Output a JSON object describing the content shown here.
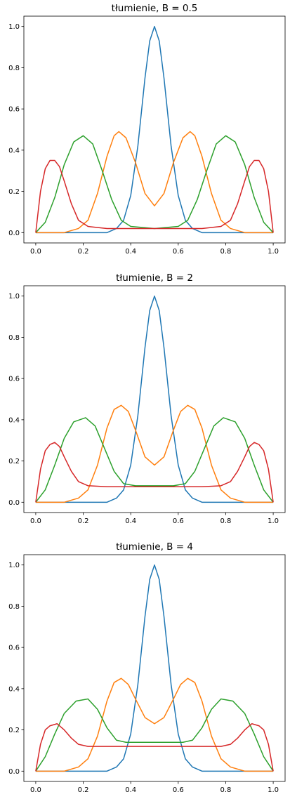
{
  "chart_data": [
    {
      "type": "line",
      "title": "tłumienie, B = 0.5",
      "xlabel": "",
      "ylabel": "",
      "xlim": [
        -0.05,
        1.05
      ],
      "ylim": [
        -0.05,
        1.05
      ],
      "x_ticks": [
        "0.0",
        "0.2",
        "0.4",
        "0.6",
        "0.8",
        "1.0"
      ],
      "y_ticks": [
        "0.0",
        "0.2",
        "0.4",
        "0.6",
        "0.8",
        "1.0"
      ],
      "series": [
        {
          "color": "#1f77b4",
          "x": [
            0.0,
            0.3,
            0.34,
            0.37,
            0.4,
            0.43,
            0.46,
            0.48,
            0.5,
            0.52,
            0.54,
            0.57,
            0.6,
            0.63,
            0.66,
            0.7,
            1.0
          ],
          "y": [
            0.0,
            0.0,
            0.02,
            0.06,
            0.18,
            0.42,
            0.75,
            0.93,
            1.0,
            0.93,
            0.75,
            0.42,
            0.18,
            0.06,
            0.02,
            0.0,
            0.0
          ]
        },
        {
          "color": "#ff7f0e",
          "x": [
            0.0,
            0.12,
            0.18,
            0.22,
            0.26,
            0.3,
            0.33,
            0.35,
            0.38,
            0.42,
            0.46,
            0.5,
            0.54,
            0.58,
            0.62,
            0.65,
            0.67,
            0.7,
            0.74,
            0.78,
            0.82,
            0.88,
            1.0
          ],
          "y": [
            0.0,
            0.0,
            0.02,
            0.06,
            0.19,
            0.37,
            0.47,
            0.49,
            0.46,
            0.34,
            0.19,
            0.13,
            0.19,
            0.34,
            0.46,
            0.49,
            0.47,
            0.37,
            0.19,
            0.06,
            0.02,
            0.0,
            0.0
          ]
        },
        {
          "color": "#2ca02c",
          "x": [
            0.0,
            0.04,
            0.08,
            0.12,
            0.16,
            0.2,
            0.24,
            0.28,
            0.32,
            0.36,
            0.4,
            0.5,
            0.6,
            0.64,
            0.68,
            0.72,
            0.76,
            0.8,
            0.84,
            0.88,
            0.92,
            0.96,
            1.0
          ],
          "y": [
            0.0,
            0.05,
            0.17,
            0.33,
            0.44,
            0.47,
            0.43,
            0.3,
            0.16,
            0.06,
            0.03,
            0.02,
            0.03,
            0.06,
            0.16,
            0.3,
            0.43,
            0.47,
            0.44,
            0.33,
            0.17,
            0.05,
            0.0
          ]
        },
        {
          "color": "#d62728",
          "x": [
            0.0,
            0.02,
            0.04,
            0.06,
            0.08,
            0.1,
            0.12,
            0.15,
            0.18,
            0.22,
            0.3,
            0.5,
            0.7,
            0.78,
            0.82,
            0.85,
            0.88,
            0.9,
            0.92,
            0.94,
            0.96,
            0.98,
            1.0
          ],
          "y": [
            0.0,
            0.2,
            0.31,
            0.35,
            0.35,
            0.32,
            0.25,
            0.14,
            0.06,
            0.03,
            0.02,
            0.02,
            0.02,
            0.03,
            0.06,
            0.14,
            0.25,
            0.32,
            0.35,
            0.35,
            0.31,
            0.2,
            0.0
          ]
        }
      ]
    },
    {
      "type": "line",
      "title": "tłumienie, B = 2",
      "xlabel": "",
      "ylabel": "",
      "xlim": [
        -0.05,
        1.05
      ],
      "ylim": [
        -0.05,
        1.05
      ],
      "x_ticks": [
        "0.0",
        "0.2",
        "0.4",
        "0.6",
        "0.8",
        "1.0"
      ],
      "y_ticks": [
        "0.0",
        "0.2",
        "0.4",
        "0.6",
        "0.8",
        "1.0"
      ],
      "series": [
        {
          "color": "#1f77b4",
          "x": [
            0.0,
            0.3,
            0.34,
            0.37,
            0.4,
            0.43,
            0.46,
            0.48,
            0.5,
            0.52,
            0.54,
            0.57,
            0.6,
            0.63,
            0.66,
            0.7,
            1.0
          ],
          "y": [
            0.0,
            0.0,
            0.02,
            0.06,
            0.18,
            0.42,
            0.75,
            0.93,
            1.0,
            0.93,
            0.75,
            0.42,
            0.18,
            0.06,
            0.02,
            0.0,
            0.0
          ]
        },
        {
          "color": "#ff7f0e",
          "x": [
            0.0,
            0.12,
            0.18,
            0.22,
            0.26,
            0.3,
            0.33,
            0.36,
            0.39,
            0.42,
            0.46,
            0.5,
            0.54,
            0.58,
            0.61,
            0.64,
            0.67,
            0.7,
            0.74,
            0.78,
            0.82,
            0.88,
            1.0
          ],
          "y": [
            0.0,
            0.0,
            0.02,
            0.06,
            0.18,
            0.36,
            0.45,
            0.47,
            0.44,
            0.35,
            0.22,
            0.18,
            0.22,
            0.35,
            0.44,
            0.47,
            0.45,
            0.36,
            0.18,
            0.06,
            0.02,
            0.0,
            0.0
          ]
        },
        {
          "color": "#2ca02c",
          "x": [
            0.0,
            0.04,
            0.08,
            0.12,
            0.16,
            0.21,
            0.25,
            0.29,
            0.33,
            0.37,
            0.42,
            0.5,
            0.58,
            0.63,
            0.67,
            0.71,
            0.75,
            0.79,
            0.84,
            0.88,
            0.92,
            0.96,
            1.0
          ],
          "y": [
            0.0,
            0.06,
            0.18,
            0.31,
            0.39,
            0.41,
            0.37,
            0.26,
            0.15,
            0.09,
            0.08,
            0.08,
            0.08,
            0.09,
            0.15,
            0.26,
            0.37,
            0.41,
            0.39,
            0.31,
            0.18,
            0.06,
            0.0
          ]
        },
        {
          "color": "#d62728",
          "x": [
            0.0,
            0.02,
            0.04,
            0.06,
            0.08,
            0.1,
            0.12,
            0.15,
            0.18,
            0.22,
            0.3,
            0.5,
            0.7,
            0.78,
            0.82,
            0.85,
            0.88,
            0.9,
            0.92,
            0.94,
            0.96,
            0.98,
            1.0
          ],
          "y": [
            0.0,
            0.16,
            0.25,
            0.28,
            0.29,
            0.27,
            0.22,
            0.15,
            0.1,
            0.08,
            0.075,
            0.075,
            0.075,
            0.08,
            0.1,
            0.15,
            0.22,
            0.27,
            0.29,
            0.28,
            0.25,
            0.16,
            0.0
          ]
        }
      ]
    },
    {
      "type": "line",
      "title": "tłumienie, B = 4",
      "xlabel": "",
      "ylabel": "",
      "xlim": [
        -0.05,
        1.05
      ],
      "ylim": [
        -0.05,
        1.05
      ],
      "x_ticks": [
        "0.0",
        "0.2",
        "0.4",
        "0.6",
        "0.8",
        "1.0"
      ],
      "y_ticks": [
        "0.0",
        "0.2",
        "0.4",
        "0.6",
        "0.8",
        "1.0"
      ],
      "series": [
        {
          "color": "#1f77b4",
          "x": [
            0.0,
            0.3,
            0.34,
            0.37,
            0.4,
            0.43,
            0.46,
            0.48,
            0.5,
            0.52,
            0.54,
            0.57,
            0.6,
            0.63,
            0.66,
            0.7,
            1.0
          ],
          "y": [
            0.0,
            0.0,
            0.02,
            0.06,
            0.18,
            0.42,
            0.75,
            0.93,
            1.0,
            0.93,
            0.75,
            0.42,
            0.18,
            0.06,
            0.02,
            0.0,
            0.0
          ]
        },
        {
          "color": "#ff7f0e",
          "x": [
            0.0,
            0.12,
            0.18,
            0.22,
            0.26,
            0.3,
            0.33,
            0.36,
            0.39,
            0.42,
            0.46,
            0.5,
            0.54,
            0.58,
            0.61,
            0.64,
            0.67,
            0.7,
            0.74,
            0.78,
            0.82,
            0.88,
            1.0
          ],
          "y": [
            0.0,
            0.0,
            0.02,
            0.06,
            0.17,
            0.34,
            0.43,
            0.45,
            0.42,
            0.35,
            0.26,
            0.23,
            0.26,
            0.35,
            0.42,
            0.45,
            0.43,
            0.34,
            0.17,
            0.06,
            0.02,
            0.0,
            0.0
          ]
        },
        {
          "color": "#2ca02c",
          "x": [
            0.0,
            0.04,
            0.08,
            0.12,
            0.17,
            0.22,
            0.26,
            0.3,
            0.34,
            0.38,
            0.42,
            0.5,
            0.58,
            0.62,
            0.66,
            0.7,
            0.74,
            0.78,
            0.83,
            0.88,
            0.92,
            0.96,
            1.0
          ],
          "y": [
            0.0,
            0.07,
            0.18,
            0.28,
            0.34,
            0.35,
            0.3,
            0.21,
            0.15,
            0.14,
            0.14,
            0.14,
            0.14,
            0.14,
            0.15,
            0.21,
            0.3,
            0.35,
            0.34,
            0.28,
            0.18,
            0.07,
            0.0
          ]
        },
        {
          "color": "#d62728",
          "x": [
            0.0,
            0.02,
            0.04,
            0.06,
            0.09,
            0.12,
            0.15,
            0.18,
            0.22,
            0.3,
            0.5,
            0.7,
            0.78,
            0.82,
            0.85,
            0.88,
            0.91,
            0.94,
            0.96,
            0.98,
            1.0
          ],
          "y": [
            0.0,
            0.13,
            0.2,
            0.22,
            0.23,
            0.2,
            0.16,
            0.13,
            0.12,
            0.12,
            0.12,
            0.12,
            0.12,
            0.13,
            0.16,
            0.2,
            0.23,
            0.22,
            0.2,
            0.13,
            0.0
          ]
        }
      ]
    }
  ]
}
